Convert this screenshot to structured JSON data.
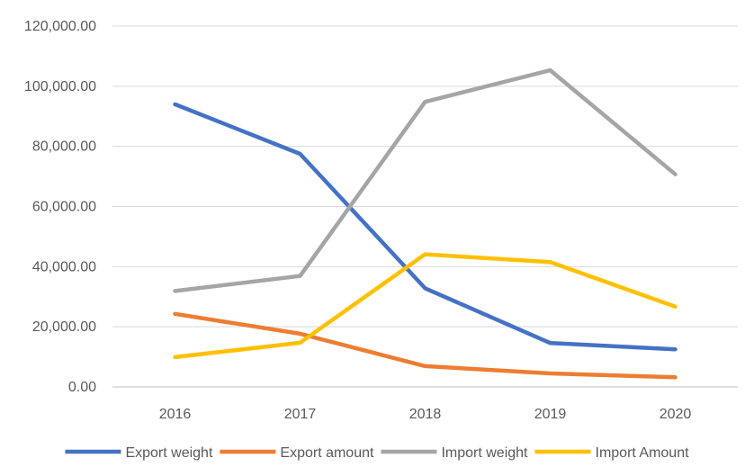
{
  "chart_data": {
    "type": "line",
    "title": "",
    "xlabel": "",
    "ylabel": "",
    "categories": [
      "2016",
      "2017",
      "2018",
      "2019",
      "2020"
    ],
    "ylim": [
      0,
      120000
    ],
    "yticks": [
      0,
      20000,
      40000,
      60000,
      80000,
      100000,
      120000
    ],
    "ytick_labels": [
      "0.00",
      "20,000.00",
      "40,000.00",
      "60,000.00",
      "80,000.00",
      "100,000.00",
      "120,000.00"
    ],
    "grid": true,
    "legend_position": "bottom",
    "series": [
      {
        "name": "Export weight",
        "color": "#4472c4",
        "values": [
          94000,
          77500,
          32800,
          14600,
          12500
        ]
      },
      {
        "name": "Export amount",
        "color": "#ed7d31",
        "values": [
          24300,
          17700,
          6900,
          4500,
          3200
        ]
      },
      {
        "name": "Import weight",
        "color": "#a5a5a5",
        "values": [
          31900,
          36900,
          94800,
          105300,
          70700
        ]
      },
      {
        "name": "Import Amount",
        "color": "#ffc000",
        "values": [
          9900,
          14700,
          44100,
          41500,
          26700
        ]
      }
    ]
  }
}
